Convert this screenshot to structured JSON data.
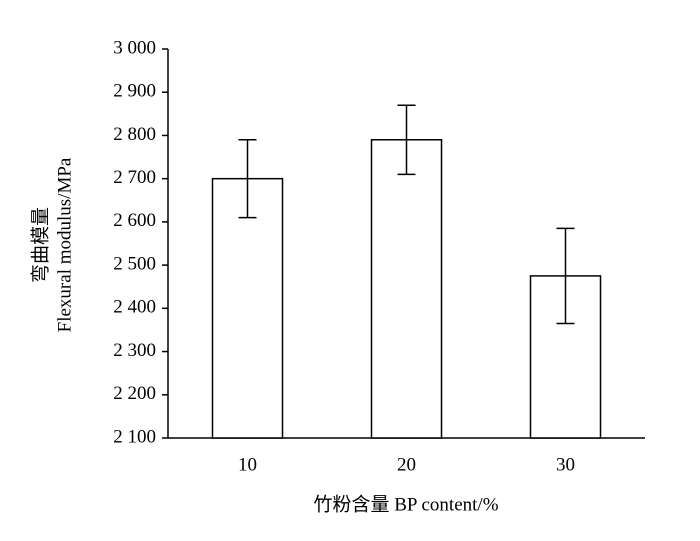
{
  "chart_data": {
    "type": "bar",
    "ylabel": [
      "弯曲模量",
      "Flexural modulus/MPa"
    ],
    "xlabel": "竹粉含量 BP content/%",
    "categories": [
      "10",
      "20",
      "30"
    ],
    "values": [
      2700,
      2790,
      2475
    ],
    "errors": [
      90,
      80,
      110
    ],
    "color": "#ffffff",
    "ylim": [
      2100,
      3000
    ],
    "yticks": [
      {
        "value": 2100,
        "label": "2 100"
      },
      {
        "value": 2200,
        "label": "2 200"
      },
      {
        "value": 2300,
        "label": "2 300"
      },
      {
        "value": 2400,
        "label": "2 400"
      },
      {
        "value": 2500,
        "label": "2 500"
      },
      {
        "value": 2600,
        "label": "2 600"
      },
      {
        "value": 2700,
        "label": "2 700"
      },
      {
        "value": 2800,
        "label": "2 800"
      },
      {
        "value": 2900,
        "label": "2 900"
      },
      {
        "value": 3000,
        "label": "3 000"
      }
    ],
    "grid": false
  }
}
